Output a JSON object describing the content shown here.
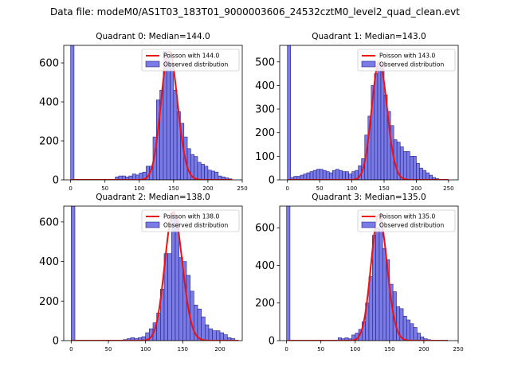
{
  "figure": {
    "suptitle": "Data file: modeM0/AS1T03_183T01_9000003606_24532cztM0_level2_quad_clean.evt"
  },
  "colors": {
    "bar_fill": "#7b7be6",
    "bar_edge": "#1f1f8a",
    "poisson_line": "#ee1111",
    "axes": "#000000"
  },
  "chart_data": [
    {
      "type": "bar",
      "title": "Quadrant 0: Median=144.0",
      "xlim": [
        -10,
        250
      ],
      "ylim": [
        0,
        690
      ],
      "xticks": [
        0,
        50,
        100,
        150,
        200,
        250
      ],
      "yticks": [
        0,
        200,
        400,
        600
      ],
      "legend": {
        "position": "top-right",
        "labels": [
          "Poisson with 144.0",
          "Observed distribution"
        ]
      },
      "series": [
        {
          "name": "Observed distribution",
          "kind": "histogram",
          "bin_width": 5,
          "bins": [
            [
              0,
              690
            ],
            [
              65,
              15
            ],
            [
              70,
              20
            ],
            [
              75,
              20
            ],
            [
              80,
              15
            ],
            [
              85,
              20
            ],
            [
              90,
              30
            ],
            [
              95,
              25
            ],
            [
              100,
              35
            ],
            [
              105,
              40
            ],
            [
              110,
              70
            ],
            [
              115,
              70
            ],
            [
              120,
              220
            ],
            [
              125,
              410
            ],
            [
              130,
              460
            ],
            [
              135,
              660
            ],
            [
              140,
              630
            ],
            [
              145,
              600
            ],
            [
              150,
              460
            ],
            [
              155,
              350
            ],
            [
              160,
              290
            ],
            [
              165,
              220
            ],
            [
              170,
              160
            ],
            [
              175,
              130
            ],
            [
              180,
              120
            ],
            [
              185,
              90
            ],
            [
              190,
              80
            ],
            [
              195,
              70
            ],
            [
              200,
              50
            ],
            [
              205,
              45
            ],
            [
              210,
              40
            ],
            [
              215,
              20
            ],
            [
              220,
              15
            ],
            [
              225,
              10
            ],
            [
              230,
              5
            ]
          ]
        },
        {
          "name": "Poisson with 144.0",
          "kind": "poisson",
          "mean": 144.0,
          "peak": 660,
          "x_range": [
            0,
            235
          ]
        }
      ]
    },
    {
      "type": "bar",
      "title": "Quadrant 1: Median=143.0",
      "xlim": [
        -12,
        265
      ],
      "ylim": [
        0,
        570
      ],
      "xticks": [
        0,
        50,
        100,
        150,
        200,
        250
      ],
      "yticks": [
        0,
        100,
        200,
        300,
        400,
        500
      ],
      "legend": {
        "position": "top-right",
        "labels": [
          "Poisson with 143.0",
          "Observed distribution"
        ]
      },
      "series": [
        {
          "name": "Observed distribution",
          "kind": "histogram",
          "bin_width": 5,
          "bins": [
            [
              0,
              570
            ],
            [
              5,
              10
            ],
            [
              10,
              15
            ],
            [
              15,
              15
            ],
            [
              20,
              20
            ],
            [
              25,
              25
            ],
            [
              30,
              30
            ],
            [
              35,
              35
            ],
            [
              40,
              40
            ],
            [
              45,
              45
            ],
            [
              50,
              45
            ],
            [
              55,
              40
            ],
            [
              60,
              35
            ],
            [
              65,
              30
            ],
            [
              70,
              40
            ],
            [
              75,
              45
            ],
            [
              80,
              40
            ],
            [
              85,
              35
            ],
            [
              90,
              35
            ],
            [
              95,
              25
            ],
            [
              100,
              35
            ],
            [
              105,
              40
            ],
            [
              110,
              60
            ],
            [
              115,
              90
            ],
            [
              120,
              190
            ],
            [
              125,
              270
            ],
            [
              130,
              400
            ],
            [
              135,
              450
            ],
            [
              140,
              500
            ],
            [
              145,
              480
            ],
            [
              150,
              360
            ],
            [
              155,
              290
            ],
            [
              160,
              230
            ],
            [
              165,
              170
            ],
            [
              170,
              160
            ],
            [
              175,
              140
            ],
            [
              180,
              120
            ],
            [
              185,
              120
            ],
            [
              190,
              100
            ],
            [
              195,
              100
            ],
            [
              200,
              70
            ],
            [
              205,
              50
            ],
            [
              210,
              40
            ],
            [
              215,
              30
            ],
            [
              220,
              20
            ],
            [
              225,
              10
            ],
            [
              230,
              5
            ]
          ]
        },
        {
          "name": "Poisson with 143.0",
          "kind": "poisson",
          "mean": 143.0,
          "peak": 500,
          "x_range": [
            0,
            250
          ]
        }
      ]
    },
    {
      "type": "bar",
      "title": "Quadrant 2: Median=138.0",
      "xlim": [
        -10,
        230
      ],
      "ylim": [
        0,
        680
      ],
      "xticks": [
        0,
        50,
        100,
        150,
        200
      ],
      "yticks": [
        0,
        200,
        400,
        600
      ],
      "legend": {
        "position": "top-right",
        "labels": [
          "Poisson with 138.0",
          "Observed distribution"
        ]
      },
      "series": [
        {
          "name": "Observed distribution",
          "kind": "histogram",
          "bin_width": 5,
          "bins": [
            [
              0,
              680
            ],
            [
              70,
              5
            ],
            [
              75,
              10
            ],
            [
              80,
              15
            ],
            [
              85,
              10
            ],
            [
              90,
              15
            ],
            [
              95,
              20
            ],
            [
              100,
              40
            ],
            [
              105,
              60
            ],
            [
              110,
              90
            ],
            [
              115,
              140
            ],
            [
              120,
              260
            ],
            [
              125,
              440
            ],
            [
              130,
              440
            ],
            [
              135,
              650
            ],
            [
              140,
              610
            ],
            [
              145,
              420
            ],
            [
              150,
              400
            ],
            [
              155,
              330
            ],
            [
              160,
              250
            ],
            [
              165,
              180
            ],
            [
              170,
              160
            ],
            [
              175,
              120
            ],
            [
              180,
              80
            ],
            [
              185,
              60
            ],
            [
              190,
              50
            ],
            [
              195,
              50
            ],
            [
              200,
              40
            ],
            [
              205,
              30
            ],
            [
              210,
              15
            ],
            [
              215,
              10
            ]
          ]
        },
        {
          "name": "Poisson with 138.0",
          "kind": "poisson",
          "mean": 138.0,
          "peak": 650,
          "x_range": [
            0,
            225
          ]
        }
      ]
    },
    {
      "type": "bar",
      "title": "Quadrant 3: Median=135.0",
      "xlim": [
        -10,
        250
      ],
      "ylim": [
        0,
        715
      ],
      "xticks": [
        0,
        50,
        100,
        150,
        200,
        250
      ],
      "yticks": [
        0,
        200,
        400,
        600
      ],
      "legend": {
        "position": "top-right",
        "labels": [
          "Poisson with 135.0",
          "Observed distribution"
        ]
      },
      "series": [
        {
          "name": "Observed distribution",
          "kind": "histogram",
          "bin_width": 5,
          "bins": [
            [
              0,
              715
            ],
            [
              75,
              15
            ],
            [
              80,
              10
            ],
            [
              85,
              15
            ],
            [
              90,
              10
            ],
            [
              95,
              30
            ],
            [
              100,
              40
            ],
            [
              105,
              60
            ],
            [
              110,
              100
            ],
            [
              115,
              200
            ],
            [
              120,
              340
            ],
            [
              125,
              560
            ],
            [
              130,
              600
            ],
            [
              135,
              670
            ],
            [
              140,
              490
            ],
            [
              145,
              430
            ],
            [
              150,
              300
            ],
            [
              155,
              260
            ],
            [
              160,
              180
            ],
            [
              165,
              170
            ],
            [
              170,
              130
            ],
            [
              175,
              110
            ],
            [
              180,
              90
            ],
            [
              185,
              70
            ],
            [
              190,
              40
            ],
            [
              195,
              20
            ],
            [
              200,
              10
            ],
            [
              205,
              5
            ]
          ]
        },
        {
          "name": "Poisson with 135.0",
          "kind": "poisson",
          "mean": 135.0,
          "peak": 670,
          "x_range": [
            0,
            235
          ]
        }
      ]
    }
  ]
}
